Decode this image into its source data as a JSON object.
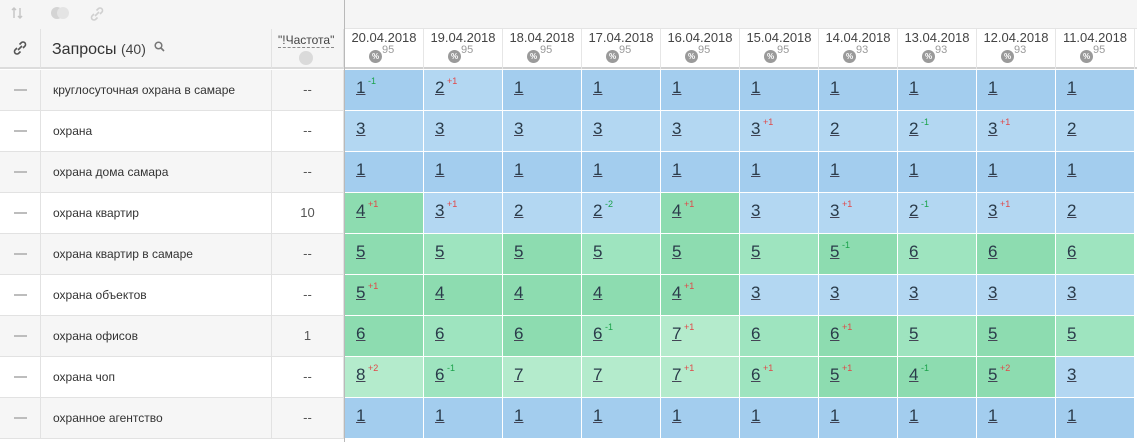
{
  "colors": {
    "top1_3": "#a3cdee",
    "top1_3_alt": "#b3d7f2",
    "top4_10": "#9ee4bf",
    "top4_10_alt": "#8ddcb0",
    "top4_10_light": "#b4ebcc",
    "change_up": "#1aa24a",
    "change_down": "#e04848"
  },
  "toolbar": {
    "icons": [
      "sort-icon",
      "toggle-icon",
      "link-icon"
    ]
  },
  "header": {
    "queries_label": "Запросы",
    "queries_count": "(40)",
    "frequency_label": "\"!Частота\""
  },
  "dates": [
    {
      "date": "20.04.2018",
      "visibility": "95"
    },
    {
      "date": "19.04.2018",
      "visibility": "95"
    },
    {
      "date": "18.04.2018",
      "visibility": "95"
    },
    {
      "date": "17.04.2018",
      "visibility": "95"
    },
    {
      "date": "16.04.2018",
      "visibility": "95"
    },
    {
      "date": "15.04.2018",
      "visibility": "95"
    },
    {
      "date": "14.04.2018",
      "visibility": "93"
    },
    {
      "date": "13.04.2018",
      "visibility": "93"
    },
    {
      "date": "12.04.2018",
      "visibility": "93"
    },
    {
      "date": "11.04.2018",
      "visibility": "95"
    }
  ],
  "pct_symbol": "%",
  "rows": [
    {
      "query": "круглосуточная охрана в самаре",
      "freq": "--",
      "cells": [
        {
          "v": "1",
          "d": "-1"
        },
        {
          "v": "2",
          "d": "+1"
        },
        {
          "v": "1"
        },
        {
          "v": "1"
        },
        {
          "v": "1"
        },
        {
          "v": "1"
        },
        {
          "v": "1"
        },
        {
          "v": "1"
        },
        {
          "v": "1"
        },
        {
          "v": "1"
        }
      ]
    },
    {
      "query": "охрана",
      "freq": "--",
      "cells": [
        {
          "v": "3"
        },
        {
          "v": "3"
        },
        {
          "v": "3"
        },
        {
          "v": "3"
        },
        {
          "v": "3"
        },
        {
          "v": "3",
          "d": "+1"
        },
        {
          "v": "2"
        },
        {
          "v": "2",
          "d": "-1"
        },
        {
          "v": "3",
          "d": "+1"
        },
        {
          "v": "2"
        }
      ]
    },
    {
      "query": "охрана дома самара",
      "freq": "--",
      "cells": [
        {
          "v": "1"
        },
        {
          "v": "1"
        },
        {
          "v": "1"
        },
        {
          "v": "1"
        },
        {
          "v": "1"
        },
        {
          "v": "1"
        },
        {
          "v": "1"
        },
        {
          "v": "1"
        },
        {
          "v": "1"
        },
        {
          "v": "1"
        }
      ]
    },
    {
      "query": "охрана квартир",
      "freq": "10",
      "cells": [
        {
          "v": "4",
          "d": "+1"
        },
        {
          "v": "3",
          "d": "+1"
        },
        {
          "v": "2"
        },
        {
          "v": "2",
          "d": "-2"
        },
        {
          "v": "4",
          "d": "+1"
        },
        {
          "v": "3"
        },
        {
          "v": "3",
          "d": "+1"
        },
        {
          "v": "2",
          "d": "-1"
        },
        {
          "v": "3",
          "d": "+1"
        },
        {
          "v": "2"
        }
      ]
    },
    {
      "query": "охрана квартир в самаре",
      "freq": "--",
      "cells": [
        {
          "v": "5"
        },
        {
          "v": "5"
        },
        {
          "v": "5"
        },
        {
          "v": "5"
        },
        {
          "v": "5"
        },
        {
          "v": "5"
        },
        {
          "v": "5",
          "d": "-1"
        },
        {
          "v": "6"
        },
        {
          "v": "6"
        },
        {
          "v": "6"
        }
      ]
    },
    {
      "query": "охрана объектов",
      "freq": "--",
      "cells": [
        {
          "v": "5",
          "d": "+1"
        },
        {
          "v": "4"
        },
        {
          "v": "4"
        },
        {
          "v": "4"
        },
        {
          "v": "4",
          "d": "+1"
        },
        {
          "v": "3"
        },
        {
          "v": "3"
        },
        {
          "v": "3"
        },
        {
          "v": "3"
        },
        {
          "v": "3"
        }
      ]
    },
    {
      "query": "охрана офисов",
      "freq": "1",
      "cells": [
        {
          "v": "6"
        },
        {
          "v": "6"
        },
        {
          "v": "6"
        },
        {
          "v": "6",
          "d": "-1"
        },
        {
          "v": "7",
          "d": "+1"
        },
        {
          "v": "6"
        },
        {
          "v": "6",
          "d": "+1"
        },
        {
          "v": "5"
        },
        {
          "v": "5"
        },
        {
          "v": "5"
        }
      ]
    },
    {
      "query": "охрана чоп",
      "freq": "--",
      "cells": [
        {
          "v": "8",
          "d": "+2"
        },
        {
          "v": "6",
          "d": "-1"
        },
        {
          "v": "7"
        },
        {
          "v": "7"
        },
        {
          "v": "7",
          "d": "+1"
        },
        {
          "v": "6",
          "d": "+1"
        },
        {
          "v": "5",
          "d": "+1"
        },
        {
          "v": "4",
          "d": "-1"
        },
        {
          "v": "5",
          "d": "+2"
        },
        {
          "v": "3"
        }
      ]
    },
    {
      "query": "охранное агентство",
      "freq": "--",
      "cells": [
        {
          "v": "1"
        },
        {
          "v": "1"
        },
        {
          "v": "1"
        },
        {
          "v": "1"
        },
        {
          "v": "1"
        },
        {
          "v": "1"
        },
        {
          "v": "1"
        },
        {
          "v": "1"
        },
        {
          "v": "1"
        },
        {
          "v": "1"
        }
      ]
    }
  ]
}
